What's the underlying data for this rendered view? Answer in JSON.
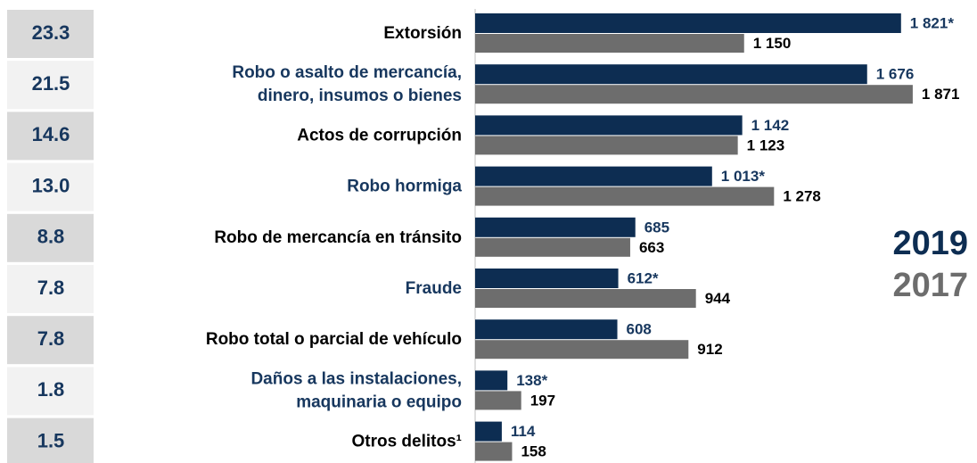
{
  "chart_data": {
    "type": "bar",
    "orientation": "horizontal",
    "categories": [
      [
        "Extorsión"
      ],
      [
        "Robo o asalto de mercancía,",
        "dinero, insumos o bienes"
      ],
      [
        "Actos de corrupción"
      ],
      [
        "Robo hormiga"
      ],
      [
        "Robo de mercancía en tránsito"
      ],
      [
        "Fraude"
      ],
      [
        "Robo total o parcial de vehículo"
      ],
      [
        "Daños a las instalaciones,",
        "maquinaria o equipo"
      ],
      [
        "Otros delitos¹"
      ]
    ],
    "category_colors": [
      "#000000",
      "#17375e",
      "#000000",
      "#17375e",
      "#000000",
      "#17375e",
      "#000000",
      "#17375e",
      "#000000"
    ],
    "rates": [
      "23.3",
      "21.5",
      "14.6",
      "13.0",
      "8.8",
      "7.8",
      "7.8",
      "1.8",
      "1.5"
    ],
    "series": [
      {
        "name": "2019",
        "color": "#0d2d52",
        "label_color": "#17375e",
        "values": [
          1821,
          1676,
          1142,
          1013,
          685,
          612,
          608,
          138,
          114
        ],
        "value_labels": [
          "1 821*",
          "1 676",
          "1 142",
          "1 013*",
          "685",
          "612*",
          "608",
          "138*",
          "114"
        ]
      },
      {
        "name": "2017",
        "color": "#6d6d6d",
        "label_color": "#000000",
        "values": [
          1150,
          1871,
          1123,
          1278,
          663,
          944,
          912,
          197,
          158
        ],
        "value_labels": [
          "1 150",
          "1 871",
          "1 123",
          "1 278",
          "663",
          "944",
          "912",
          "197",
          "158"
        ]
      }
    ],
    "xlim": [
      0,
      2100
    ]
  }
}
